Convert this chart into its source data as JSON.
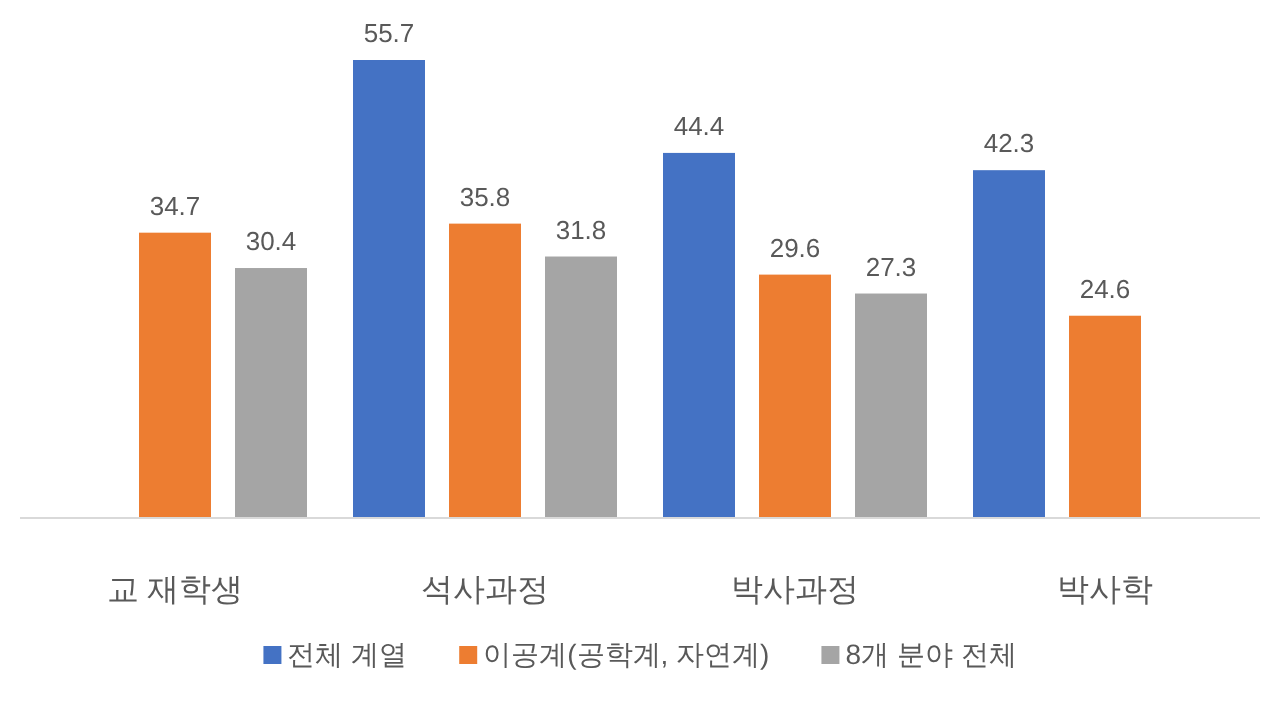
{
  "chart_data": {
    "type": "bar",
    "categories": [
      "교 재학생",
      "석사과정",
      "박사과정",
      "박사학"
    ],
    "series": [
      {
        "name": "전체 계열",
        "color": "#4472c4",
        "values": [
          null,
          55.7,
          44.4,
          42.3
        ]
      },
      {
        "name": "이공계(공학계, 자연계)",
        "color": "#ed7d31",
        "values": [
          34.7,
          35.8,
          29.6,
          24.6
        ]
      },
      {
        "name": "8개 분야 전체",
        "color": "#a5a5a5",
        "values": [
          30.4,
          31.8,
          27.3,
          null
        ]
      }
    ],
    "data_labels": true,
    "legend": "bottom"
  }
}
